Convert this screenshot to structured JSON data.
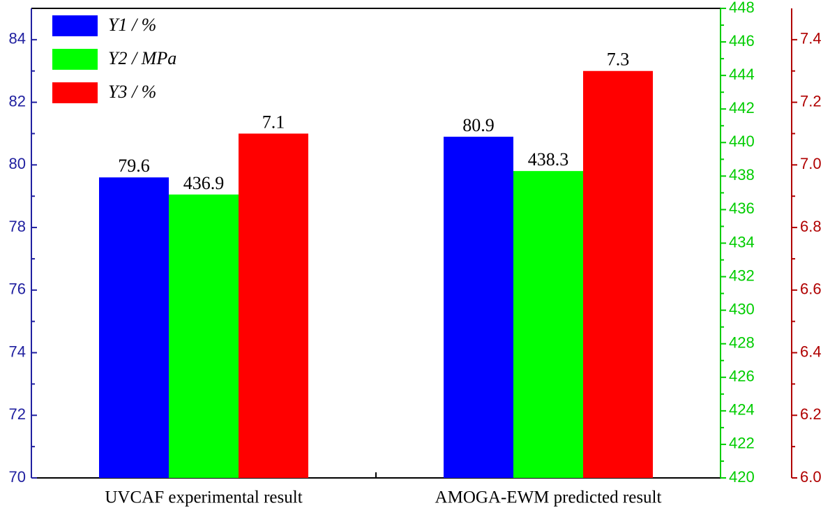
{
  "chart_data": {
    "type": "bar",
    "categories": [
      "UVCAF experimental result",
      "AMOGA-EWM predicted result"
    ],
    "series": [
      {
        "name": "Y1 / %",
        "color": "#0000ff",
        "values": [
          79.6,
          80.9
        ],
        "axis": "y"
      },
      {
        "name": "Y2 / MPa",
        "color": "#00ff00",
        "values": [
          436.9,
          438.3
        ],
        "axis": "y2"
      },
      {
        "name": "Y3 / %",
        "color": "#ff0000",
        "values": [
          7.1,
          7.3
        ],
        "axis": "y3"
      }
    ],
    "ylim": [
      70,
      85
    ],
    "yticks": [
      70,
      72,
      74,
      76,
      78,
      80,
      82,
      84
    ],
    "ycolor": "#2020a0",
    "y2lim": [
      420,
      448
    ],
    "y2ticks": [
      420,
      422,
      424,
      426,
      428,
      430,
      432,
      434,
      436,
      438,
      440,
      442,
      444,
      446,
      448
    ],
    "y2color": "#00cc00",
    "y3lim": [
      6.0,
      7.5
    ],
    "y3ticks": [
      {
        "value": 6.0,
        "label": "6.0"
      },
      6.2,
      6.4,
      6.6,
      6.8,
      {
        "value": 7.0,
        "label": "7.0"
      },
      7.2,
      7.4
    ],
    "y3color": "#b00000",
    "legend": "upper left"
  }
}
